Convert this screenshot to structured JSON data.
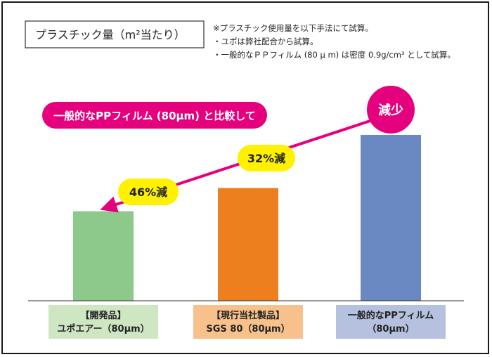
{
  "chart_data": {
    "type": "bar",
    "title": "プラスチック量（m²当たり）",
    "notes": [
      "※プラスチック使用量を以下手法にて試算。",
      "・ユポは弊社配合から試算。",
      "・一般的なＰＰフィルム (80 μ m) は密度 0.9g/cm³ として試算。"
    ],
    "categories": [
      {
        "line1": "【開発品】",
        "line2": "ユポエアー（80μm）"
      },
      {
        "line1": "【現行当社製品】",
        "line2": "SGS 80（80μm）"
      },
      {
        "line1": "一般的なPPフィルム",
        "line2": "（80μm）"
      }
    ],
    "values": [
      54,
      68,
      100
    ],
    "value_unit": "relative to 一般的なPPフィルム = 100",
    "ylim": [
      0,
      100
    ],
    "grid": false,
    "annotations": {
      "banner": "一般的なPPフィルム (80μm) と比較して",
      "reduction_circle": "減少",
      "reduction_dev": "46%減",
      "reduction_current": "32%減"
    },
    "colors": {
      "bars": [
        "#8dc98b",
        "#ee7f1e",
        "#6a88c2"
      ],
      "label_bg": [
        "#cfe6c3",
        "#f8c08a",
        "#b6c1df"
      ],
      "accent": "#e5007e",
      "highlight": "#fff100"
    }
  }
}
